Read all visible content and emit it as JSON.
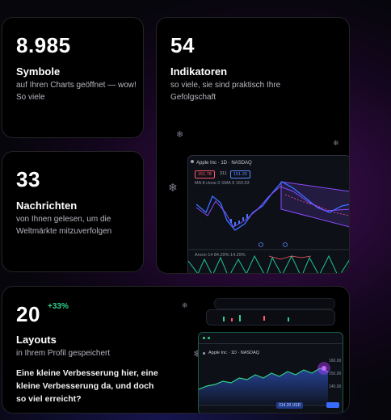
{
  "cards": {
    "symbols": {
      "value": "8.985",
      "title": "Symbole",
      "desc": "auf Ihren Charts geöffnet — wow! So viele"
    },
    "indicators": {
      "value": "54",
      "title": "Indikatoren",
      "desc": "so viele, sie sind praktisch Ihre Gefolgschaft"
    },
    "news": {
      "value": "33",
      "title": "Nachrichten",
      "desc": "von Ihnen gelesen, um die Weltmärkte mitzuverfolgen"
    },
    "layouts": {
      "value": "20",
      "badge": "+33%",
      "title": "Layouts",
      "desc": "in Ihrem Profil gespeichert",
      "note": "Eine kleine Verbesserung hier, eine kleine Verbesserung da, und doch so viel erreicht?"
    }
  },
  "mini_chart_1": {
    "header": "Apple Inc · 1D · NASDAQ",
    "price_sell": "151.78",
    "price_mid": "311",
    "price_buy": "151.26",
    "ma_label": "MA  8 close 0  SMA 9  150.53",
    "osc_label": "Aroon  14  84.29%  14.29%"
  },
  "mini_chart_2": {
    "header": "Apple Inc · 1D · NASDAQ",
    "axis_labels": [
      "160.00",
      "150.00",
      "140.00"
    ],
    "footer_price": "314.20 USD"
  },
  "colors": {
    "accent_green": "#2fd08a",
    "chart_blue": "#3a6bff",
    "chart_purple": "#8a4bff"
  }
}
